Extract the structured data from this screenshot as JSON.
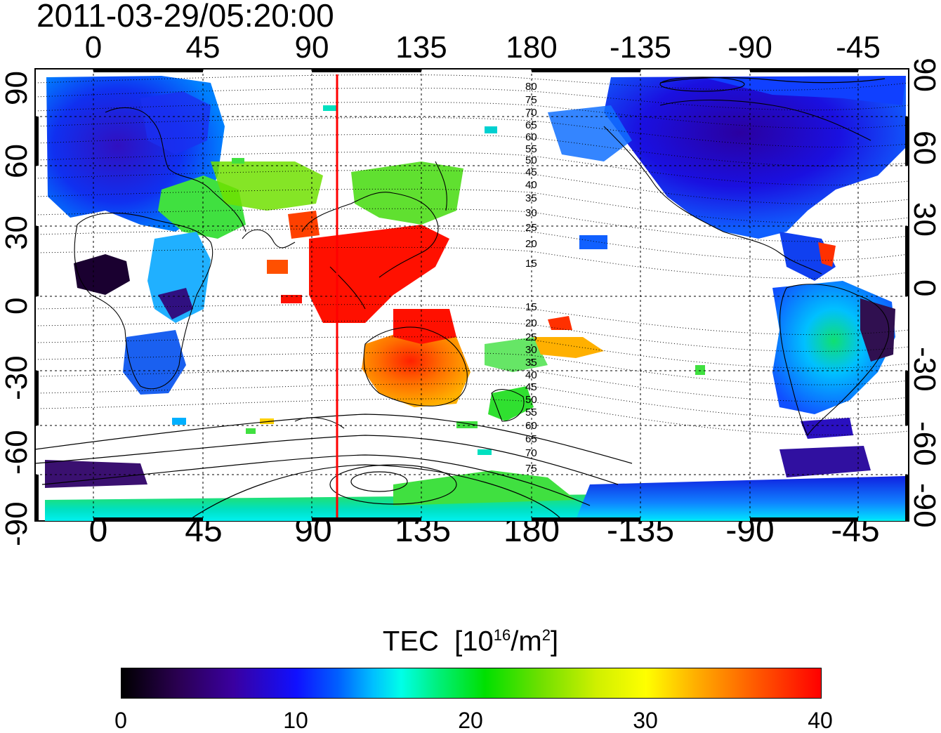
{
  "title": "2011-03-29/05:20:00",
  "map": {
    "lon_ticks": [
      "0",
      "45",
      "90",
      "135",
      "180",
      "-135",
      "-90",
      "-45"
    ],
    "lat_ticks": [
      "90",
      "60",
      "30",
      "0",
      "-30",
      "-60",
      "-90"
    ],
    "contour_labels_north": [
      "80",
      "75",
      "70",
      "65",
      "60",
      "55",
      "50",
      "45",
      "40",
      "35",
      "30",
      "25",
      "20",
      "15"
    ],
    "contour_labels_south": [
      "15",
      "20",
      "25",
      "30",
      "35",
      "40",
      "45",
      "50",
      "55",
      "60",
      "65",
      "70",
      "75"
    ],
    "marker_line_longitude": 100,
    "marker_line_color": "#ff0000"
  },
  "colorbar": {
    "label": "TEC",
    "unit_prefix": "[10",
    "unit_exp": "16",
    "unit_mid": "/m",
    "unit_exp2": "2",
    "unit_suffix": "]",
    "ticks": [
      "0",
      "10",
      "20",
      "30",
      "40"
    ],
    "range": [
      0,
      40
    ]
  }
}
